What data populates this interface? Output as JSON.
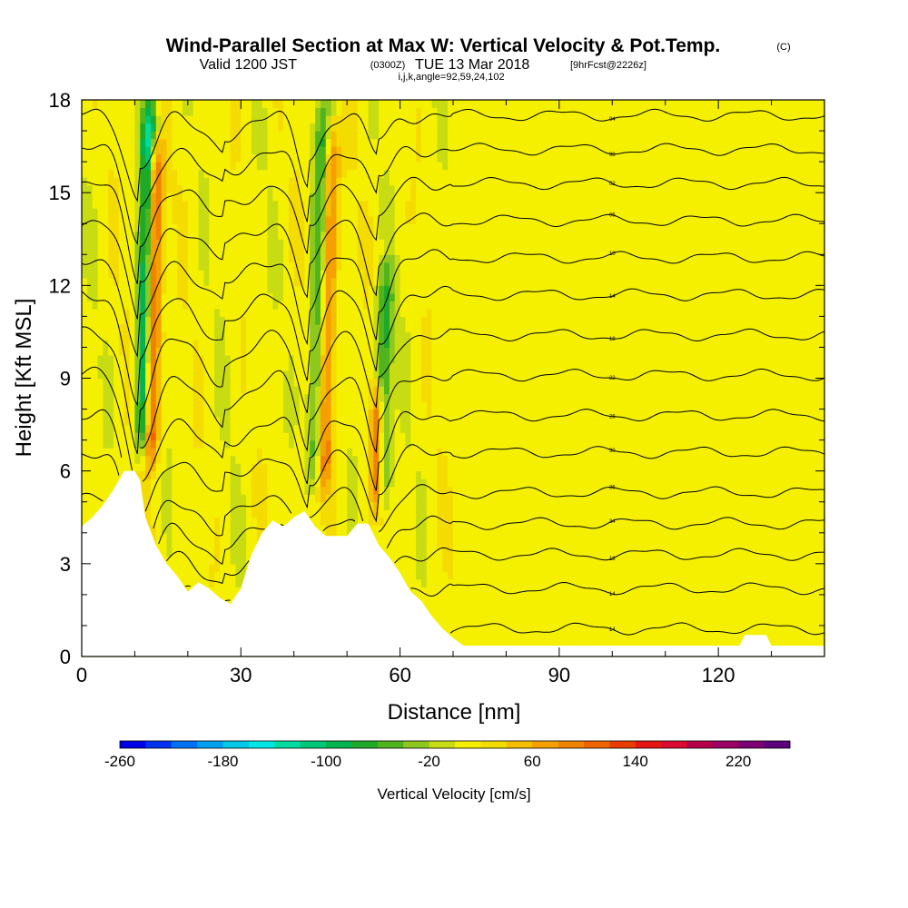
{
  "title": {
    "main": "Wind-Parallel Section at Max W: Vertical Velocity & Pot.Temp.",
    "copyright": "(C)",
    "valid_prefix": "Valid 1200 JST",
    "valid_utc": "(0300Z)",
    "valid_date": "TUE 13 Mar 2018",
    "forecast": "[9hrFcst@2226z]",
    "grid_info": "i,j,k,angle=92,59,24,102"
  },
  "chart_data": {
    "type": "heatmap",
    "xlabel": "Distance [nm]",
    "ylabel": "Height [Kft MSL]",
    "xlim": [
      0,
      140
    ],
    "ylim": [
      0,
      18
    ],
    "x_ticks": [
      "0",
      "30",
      "60",
      "90",
      "120"
    ],
    "y_ticks": [
      "0",
      "3",
      "6",
      "9",
      "12",
      "15",
      "18"
    ],
    "colorbar": {
      "title": "Vertical Velocity [cm/s]",
      "min": -260,
      "max": 260,
      "step": 20,
      "tick_labels": [
        "-260",
        "-180",
        "-100",
        "-20",
        "60",
        "140",
        "220"
      ],
      "colors": [
        "#0000e6",
        "#0033f0",
        "#0070f5",
        "#00a0f0",
        "#00c8e6",
        "#00e6e6",
        "#00dca0",
        "#00c878",
        "#00b450",
        "#1eaa28",
        "#50b41e",
        "#8cc81e",
        "#c8dc14",
        "#f5f000",
        "#f5dc00",
        "#f5be00",
        "#f5a000",
        "#f08200",
        "#f06400",
        "#eb3c00",
        "#e61414",
        "#dc0a32",
        "#b4004b",
        "#9b0064",
        "#7d0073",
        "#5a007d"
      ]
    },
    "terrain": [
      {
        "x": 0,
        "h": 4.2
      },
      {
        "x": 2,
        "h": 4.5
      },
      {
        "x": 4,
        "h": 4.9
      },
      {
        "x": 6,
        "h": 5.4
      },
      {
        "x": 8,
        "h": 6.0
      },
      {
        "x": 10,
        "h": 6.0
      },
      {
        "x": 11,
        "h": 5.7
      },
      {
        "x": 12,
        "h": 4.5
      },
      {
        "x": 14,
        "h": 3.6
      },
      {
        "x": 16,
        "h": 3.0
      },
      {
        "x": 18,
        "h": 2.6
      },
      {
        "x": 20,
        "h": 2.1
      },
      {
        "x": 22,
        "h": 2.4
      },
      {
        "x": 24,
        "h": 2.2
      },
      {
        "x": 26,
        "h": 1.9
      },
      {
        "x": 28,
        "h": 1.7
      },
      {
        "x": 30,
        "h": 2.2
      },
      {
        "x": 32,
        "h": 3.3
      },
      {
        "x": 34,
        "h": 4.0
      },
      {
        "x": 36,
        "h": 4.4
      },
      {
        "x": 38,
        "h": 4.2
      },
      {
        "x": 40,
        "h": 4.5
      },
      {
        "x": 42,
        "h": 4.7
      },
      {
        "x": 44,
        "h": 4.2
      },
      {
        "x": 46,
        "h": 3.9
      },
      {
        "x": 50,
        "h": 3.9
      },
      {
        "x": 52,
        "h": 4.3
      },
      {
        "x": 54,
        "h": 4.3
      },
      {
        "x": 56,
        "h": 3.6
      },
      {
        "x": 58,
        "h": 3.2
      },
      {
        "x": 60,
        "h": 2.7
      },
      {
        "x": 62,
        "h": 2.1
      },
      {
        "x": 64,
        "h": 1.8
      },
      {
        "x": 66,
        "h": 1.3
      },
      {
        "x": 68,
        "h": 0.9
      },
      {
        "x": 70,
        "h": 0.6
      },
      {
        "x": 72,
        "h": 0.35
      },
      {
        "x": 124,
        "h": 0.35
      },
      {
        "x": 125,
        "h": 0.7
      },
      {
        "x": 129,
        "h": 0.7
      },
      {
        "x": 130,
        "h": 0.35
      },
      {
        "x": 140,
        "h": 0.35
      }
    ],
    "isentropes": [
      {
        "y0": 0.9,
        "dips": [
          [
            11,
            -1.6,
            3.5
          ],
          [
            27,
            0.2,
            6
          ],
          [
            43,
            0.6,
            3
          ],
          [
            56,
            0.4,
            3
          ]
        ],
        "label": "14"
      },
      {
        "y0": 2.2,
        "dips": [
          [
            11,
            -2.2,
            3.5
          ],
          [
            27,
            -0.6,
            6
          ],
          [
            43,
            0.8,
            3
          ],
          [
            56,
            0.6,
            3
          ]
        ],
        "label": "14"
      },
      {
        "y0": 3.3,
        "dips": [
          [
            11,
            -2.8,
            3.5
          ],
          [
            27,
            -0.9,
            6
          ],
          [
            43,
            -0.9,
            3
          ],
          [
            56,
            -0.8,
            3
          ]
        ],
        "label": "18"
      },
      {
        "y0": 4.3,
        "dips": [
          [
            11,
            -3.2,
            3.5
          ],
          [
            27,
            -1.2,
            6
          ],
          [
            43,
            -1.2,
            3
          ],
          [
            56,
            -1.5,
            3
          ]
        ],
        "label": "34"
      },
      {
        "y0": 5.3,
        "dips": [
          [
            11,
            -3.5,
            3.5
          ],
          [
            27,
            -1.4,
            6
          ],
          [
            43,
            -1.6,
            3
          ],
          [
            56,
            -2.0,
            3
          ]
        ],
        "label": "36"
      },
      {
        "y0": 6.6,
        "dips": [
          [
            11,
            -3.6,
            3.5
          ],
          [
            27,
            -1.5,
            6
          ],
          [
            43,
            -2.0,
            3
          ],
          [
            56,
            -2.3,
            3
          ]
        ],
        "label": "30"
      },
      {
        "y0": 7.8,
        "dips": [
          [
            11,
            -3.7,
            3.5
          ],
          [
            27,
            -1.5,
            6
          ],
          [
            43,
            -2.3,
            3
          ],
          [
            56,
            -2.5,
            3
          ]
        ],
        "label": "26"
      },
      {
        "y0": 9.1,
        "dips": [
          [
            11,
            -3.7,
            3.5
          ],
          [
            27,
            -1.5,
            6
          ],
          [
            43,
            -2.5,
            3
          ],
          [
            56,
            -2.6,
            3
          ]
        ],
        "label": "22"
      },
      {
        "y0": 10.4,
        "dips": [
          [
            11,
            -3.7,
            3.5
          ],
          [
            27,
            -1.5,
            6
          ],
          [
            43,
            -2.6,
            3
          ],
          [
            56,
            -2.6,
            3
          ]
        ],
        "label": "18"
      },
      {
        "y0": 11.7,
        "dips": [
          [
            11,
            -3.6,
            3.5
          ],
          [
            27,
            -1.5,
            6
          ],
          [
            43,
            -2.7,
            3
          ],
          [
            56,
            -2.6,
            3
          ]
        ],
        "label": "14"
      },
      {
        "y0": 12.9,
        "dips": [
          [
            11,
            -3.5,
            3.5
          ],
          [
            27,
            -1.4,
            6
          ],
          [
            43,
            -2.7,
            3
          ],
          [
            56,
            -2.5,
            3
          ]
        ],
        "label": "10"
      },
      {
        "y0": 14.1,
        "dips": [
          [
            11,
            -3.4,
            3.5
          ],
          [
            27,
            -1.3,
            6
          ],
          [
            43,
            -2.7,
            3
          ],
          [
            56,
            -2.3,
            3
          ]
        ],
        "label": "06"
      },
      {
        "y0": 15.3,
        "dips": [
          [
            11,
            -3.2,
            3.5
          ],
          [
            27,
            -1.2,
            6
          ],
          [
            43,
            -2.6,
            3
          ],
          [
            56,
            -2.0,
            3
          ]
        ],
        "label": "02"
      },
      {
        "y0": 16.4,
        "dips": [
          [
            11,
            -3.0,
            3.5
          ],
          [
            27,
            -1.1,
            6
          ],
          [
            43,
            -2.4,
            3
          ],
          [
            56,
            -1.6,
            3
          ]
        ],
        "label": "98"
      },
      {
        "y0": 17.5,
        "dips": [
          [
            11,
            -2.8,
            3.5
          ],
          [
            27,
            -1.0,
            6
          ],
          [
            43,
            -2.2,
            3
          ],
          [
            56,
            -1.3,
            3
          ]
        ],
        "label": "94"
      }
    ],
    "features": [
      {
        "x": 11.5,
        "y0": 5.8,
        "y1": 18,
        "w": -180,
        "width": 1.4,
        "tilt": 0.35
      },
      {
        "x": 12.5,
        "y0": 5.6,
        "y1": 17,
        "w": 160,
        "width": 1.6,
        "tilt": 0.35
      },
      {
        "x": 44,
        "y0": 5.0,
        "y1": 18,
        "w": -100,
        "width": 1.6,
        "tilt": 0.45
      },
      {
        "x": 45.3,
        "y0": 4.8,
        "y1": 17.5,
        "w": 110,
        "width": 1.6,
        "tilt": 0.45
      },
      {
        "x": 56.5,
        "y0": 4.4,
        "y1": 13,
        "w": -80,
        "width": 1.5,
        "tilt": 0.35
      },
      {
        "x": 55.5,
        "y0": 4.2,
        "y1": 9,
        "w": 120,
        "width": 1.2,
        "tilt": 0.2
      }
    ]
  }
}
